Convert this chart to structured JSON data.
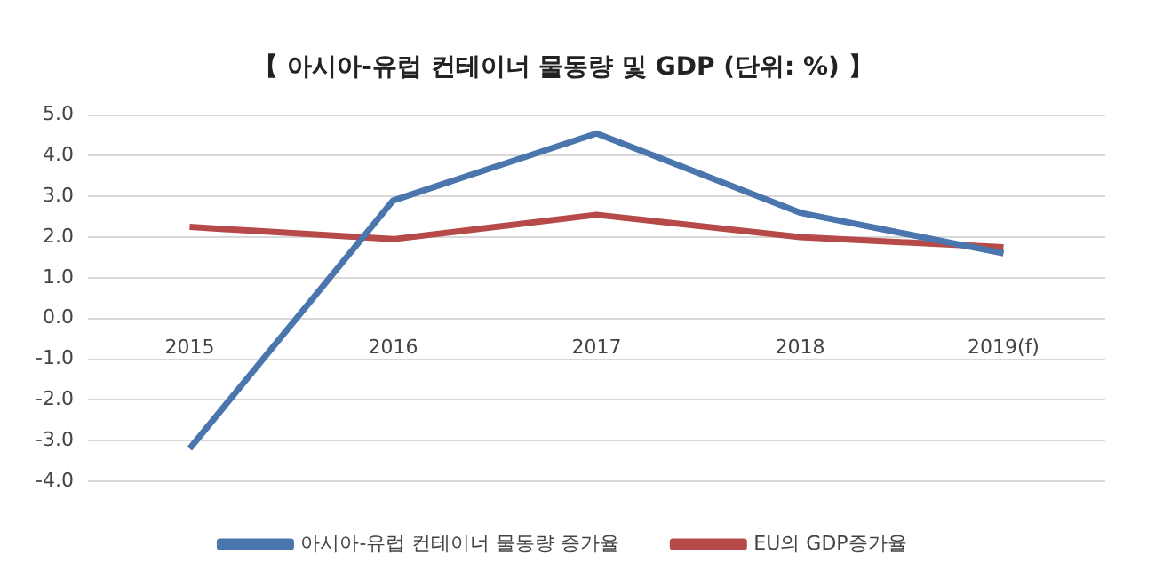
{
  "chart_data": {
    "type": "line",
    "title": "【 아시아-유럽 컨테이너 물동량 및 GDP (단위: %) 】",
    "categories": [
      "2015",
      "2016",
      "2017",
      "2018",
      "2019(f)"
    ],
    "series": [
      {
        "name": "아시아-유럽 컨테이너 물동량 증가율",
        "color": "#4a76ad",
        "values": [
          -3.2,
          2.9,
          4.55,
          2.6,
          1.6
        ]
      },
      {
        "name": "EU의 GDP증가율",
        "color": "#b54a48",
        "values": [
          2.25,
          1.95,
          2.55,
          2.0,
          1.75
        ]
      }
    ],
    "ylim": [
      -4,
      5
    ],
    "yticks": [
      {
        "value": -4,
        "label": "-4.0"
      },
      {
        "value": -3,
        "label": "-3.0"
      },
      {
        "value": -2,
        "label": "-2.0"
      },
      {
        "value": -1,
        "label": "-1.0"
      },
      {
        "value": 0,
        "label": "0.0"
      },
      {
        "value": 1,
        "label": "1.0"
      },
      {
        "value": 2,
        "label": "2.0"
      },
      {
        "value": 3,
        "label": "3.0"
      },
      {
        "value": 4,
        "label": "4.0"
      },
      {
        "value": 5,
        "label": "5.0"
      }
    ],
    "grid": "y",
    "legend": "bottom",
    "marker": "none",
    "line_style": "solid"
  }
}
